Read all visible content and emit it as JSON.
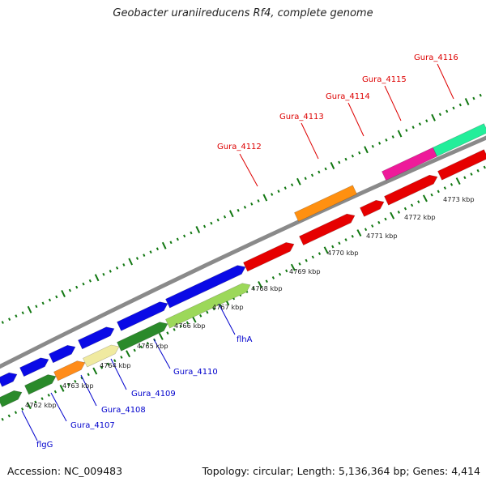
{
  "title": "Geobacter uraniireducens Rf4, complete genome",
  "footer": {
    "accession": "Accession: NC_009483",
    "summary": "Topology: circular; Length: 5,136,364 bp; Genes: 4,414"
  },
  "colors": {
    "label_top": "#dd0000",
    "label_bottom": "#0000cc",
    "backbone": "#8a8a8a",
    "ticks": "#117711"
  },
  "kbp_labels": [
    "4762 kbp",
    "4763 kbp",
    "4764 kbp",
    "4765 kbp",
    "4766 kbp",
    "4767 kbp",
    "4768 kbp",
    "4769 kbp",
    "4770 kbp",
    "4771 kbp",
    "4772 kbp",
    "4773 kbp"
  ],
  "genes_top": [
    "Gura_4112",
    "Gura_4113",
    "Gura_4114",
    "Gura_4115",
    "Gura_4116"
  ],
  "genes_bottom": [
    "flgG",
    "Gura_4107",
    "Gura_4108",
    "Gura_4109",
    "Gura_4110",
    "flhA"
  ]
}
